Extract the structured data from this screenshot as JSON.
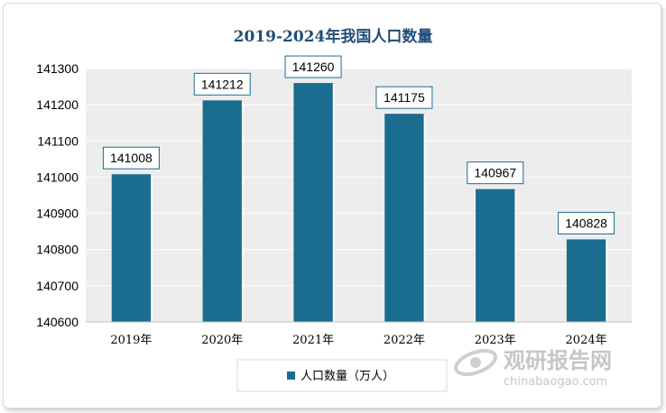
{
  "chart_data": {
    "type": "bar",
    "title": "2019-2024年我国人口数量",
    "categories": [
      "2019年",
      "2020年",
      "2021年",
      "2022年",
      "2023年",
      "2024年"
    ],
    "series": [
      {
        "name": "人口数量（万人）",
        "values": [
          141008,
          141212,
          141260,
          141175,
          140967,
          140828
        ]
      }
    ],
    "data_labels": [
      "141008",
      "141212",
      "141260",
      "141175",
      "140967",
      "140828"
    ],
    "ylim": [
      140600,
      141300
    ],
    "yticks": [
      140600,
      140700,
      140800,
      140900,
      141000,
      141100,
      141200,
      141300
    ],
    "ytick_labels": [
      "140600",
      "140700",
      "140800",
      "140900",
      "141000",
      "141100",
      "141200",
      "141300"
    ],
    "grid": true,
    "legend_position": "bottom",
    "colors": {
      "bar": "#1b6d8f",
      "plot_bg": "#ededed",
      "title": "#1f4e79",
      "label_border": "#1b6d8f"
    }
  },
  "watermark": {
    "brand": "观研报告网",
    "url": "chinabaogao.com"
  }
}
